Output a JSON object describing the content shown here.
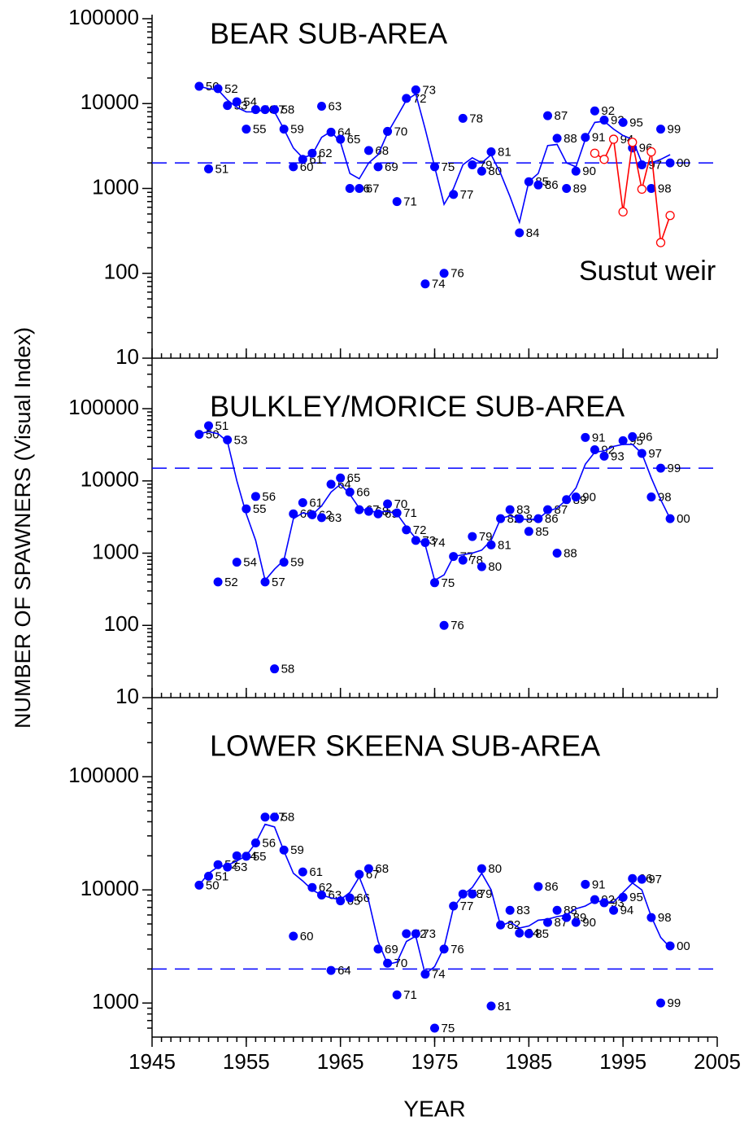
{
  "chart_data": [
    {
      "type": "scatter",
      "title": "BEAR SUB-AREA",
      "log_y": true,
      "xlim": [
        1945,
        2005
      ],
      "xticks": [
        1945,
        1955,
        1965,
        1975,
        1985,
        1995,
        2005
      ],
      "ylim": [
        10,
        100000
      ],
      "yticks": [
        10,
        100,
        1000,
        10000,
        100000
      ],
      "hline": 2000,
      "series": [
        {
          "kind": "points",
          "color": "#0000ff",
          "x": [
            1950,
            1951,
            1952,
            1953,
            1954,
            1955,
            1956,
            1957,
            1958,
            1959,
            1960,
            1961,
            1962,
            1963,
            1964,
            1965,
            1966,
            1967,
            1968,
            1969,
            1970,
            1971,
            1972,
            1973,
            1974,
            1975,
            1976,
            1977,
            1978,
            1979,
            1980,
            1981,
            1984,
            1985,
            1986,
            1987,
            1988,
            1989,
            1990,
            1991,
            1992,
            1993,
            1994,
            1995,
            1996,
            1997,
            1998,
            1999,
            2000
          ],
          "values": [
            16000,
            1700,
            15000,
            9500,
            10500,
            5000,
            8500,
            8500,
            8500,
            5000,
            1800,
            2200,
            2600,
            9300,
            4600,
            3800,
            1000,
            1000,
            2800,
            1800,
            4700,
            700,
            11500,
            14500,
            75,
            1800,
            100,
            850,
            6700,
            1900,
            1600,
            2700,
            300,
            1200,
            1100,
            7200,
            3900,
            1000,
            1600,
            4000,
            8200,
            6400,
            3800,
            6000,
            3000,
            1900,
            1000,
            5000,
            2000
          ],
          "point_labels": [
            "50",
            "51",
            "52",
            "53",
            "54",
            "55",
            "56",
            "57",
            "58",
            "59",
            "60",
            "61",
            "62",
            "63",
            "64",
            "65",
            "66",
            "67",
            "68",
            "69",
            "70",
            "71",
            "72",
            "73",
            "74",
            "75",
            "76",
            "77",
            "78",
            "79",
            "80",
            "81",
            "84",
            "85",
            "86",
            "87",
            "88",
            "89",
            "90",
            "91",
            "92",
            "93",
            "94",
            "95",
            "96",
            "97",
            "98",
            "99",
            "00"
          ]
        },
        {
          "kind": "line",
          "color": "#0000ff",
          "x": [
            1950,
            1951,
            1952,
            1953,
            1954,
            1955,
            1956,
            1957,
            1958,
            1959,
            1960,
            1961,
            1962,
            1963,
            1964,
            1965,
            1966,
            1967,
            1968,
            1969,
            1970,
            1971,
            1972,
            1973,
            1974,
            1975,
            1976,
            1977,
            1978,
            1979,
            1980,
            1981,
            1982,
            1983,
            1984,
            1985,
            1986,
            1987,
            1988,
            1989,
            1990,
            1991,
            1992,
            1993,
            1994,
            1995,
            1996,
            1997,
            1998,
            1999,
            2000
          ],
          "values": [
            16000,
            15000,
            14500,
            11000,
            9000,
            8000,
            8000,
            8500,
            8000,
            5000,
            3000,
            2300,
            2500,
            4000,
            4700,
            3500,
            1500,
            1300,
            2000,
            2500,
            4500,
            7000,
            11000,
            13000,
            5000,
            1800,
            650,
            1000,
            1900,
            2300,
            2000,
            2500,
            1500,
            800,
            400,
            1200,
            1500,
            3200,
            3300,
            2000,
            1800,
            3800,
            6000,
            6200,
            5000,
            4200,
            3800,
            2000,
            2000,
            2200,
            2500
          ]
        },
        {
          "name": "Sustut weir",
          "kind": "open-line",
          "color": "#ff0000",
          "x": [
            1992,
            1993,
            1994,
            1995,
            1996,
            1997,
            1998,
            1999,
            2000
          ],
          "values": [
            2600,
            2200,
            3800,
            530,
            3500,
            980,
            2700,
            230,
            480
          ]
        }
      ]
    },
    {
      "type": "scatter",
      "title": "BULKLEY/MORICE SUB-AREA",
      "log_y": true,
      "ylabel": "NUMBER OF SPAWNERS (Visual Index)",
      "xlim": [
        1945,
        2005
      ],
      "xticks": [
        1945,
        1955,
        1965,
        1975,
        1985,
        1995,
        2005
      ],
      "ylim": [
        10,
        500000
      ],
      "yticks": [
        10,
        100,
        1000,
        10000,
        100000
      ],
      "hline": 15000,
      "series": [
        {
          "kind": "points",
          "color": "#0000ff",
          "x": [
            1950,
            1951,
            1952,
            1953,
            1954,
            1955,
            1956,
            1957,
            1958,
            1959,
            1960,
            1961,
            1962,
            1963,
            1964,
            1965,
            1966,
            1967,
            1968,
            1969,
            1970,
            1971,
            1972,
            1973,
            1974,
            1975,
            1976,
            1977,
            1978,
            1979,
            1980,
            1981,
            1982,
            1983,
            1984,
            1985,
            1986,
            1987,
            1988,
            1989,
            1990,
            1991,
            1992,
            1993,
            1995,
            1996,
            1997,
            1998,
            1999,
            2000
          ],
          "values": [
            44000,
            58000,
            400,
            37000,
            750,
            4100,
            6100,
            400,
            25,
            750,
            3500,
            5000,
            3400,
            3100,
            9000,
            11000,
            7000,
            4000,
            3800,
            3500,
            4800,
            3600,
            2100,
            1500,
            1400,
            390,
            100,
            900,
            800,
            1700,
            650,
            1300,
            3000,
            4000,
            3000,
            2000,
            3000,
            4000,
            1000,
            5500,
            6000,
            40000,
            27000,
            22000,
            36000,
            41000,
            24000,
            6000,
            15000,
            3000
          ],
          "point_labels": [
            "50",
            "51",
            "52",
            "53",
            "54",
            "55",
            "56",
            "57",
            "58",
            "59",
            "60",
            "61",
            "62",
            "63",
            "64",
            "65",
            "66",
            "67",
            "68",
            "69",
            "70",
            "71",
            "72",
            "73",
            "74",
            "75",
            "76",
            "77",
            "78",
            "79",
            "80",
            "81",
            "82",
            "83",
            "84",
            "85",
            "86",
            "87",
            "88",
            "89",
            "90",
            "91",
            "92",
            "93",
            "95",
            "96",
            "97",
            "98",
            "99",
            "00"
          ]
        },
        {
          "kind": "line",
          "color": "#0000ff",
          "x": [
            1950,
            1951,
            1952,
            1953,
            1954,
            1955,
            1956,
            1957,
            1958,
            1959,
            1960,
            1961,
            1962,
            1963,
            1964,
            1965,
            1966,
            1967,
            1968,
            1969,
            1970,
            1971,
            1972,
            1973,
            1974,
            1975,
            1976,
            1977,
            1978,
            1979,
            1980,
            1981,
            1982,
            1983,
            1984,
            1985,
            1986,
            1987,
            1988,
            1989,
            1990,
            1991,
            1992,
            1993,
            1994,
            1995,
            1996,
            1997,
            1998,
            1999,
            2000
          ],
          "values": [
            45000,
            48000,
            45000,
            35000,
            10000,
            3500,
            1500,
            420,
            600,
            800,
            3000,
            3600,
            3400,
            4500,
            7000,
            9000,
            6500,
            4200,
            3800,
            3700,
            3800,
            3500,
            2300,
            1600,
            1300,
            420,
            500,
            900,
            950,
            1000,
            1100,
            1500,
            3000,
            3300,
            3000,
            2900,
            3000,
            3800,
            4200,
            5500,
            8000,
            17000,
            25000,
            26000,
            30000,
            32000,
            32000,
            24000,
            11000,
            5500,
            3000
          ]
        }
      ]
    },
    {
      "type": "scatter",
      "title": "LOWER SKEENA SUB-AREA",
      "log_y": true,
      "xlabel": "YEAR",
      "xlim": [
        1945,
        2005
      ],
      "xticks": [
        1945,
        1955,
        1965,
        1975,
        1985,
        1995,
        2005
      ],
      "ylim": [
        500,
        500000
      ],
      "yticks": [
        1000,
        10000,
        100000
      ],
      "hline": 2000,
      "series": [
        {
          "kind": "points",
          "color": "#0000ff",
          "x": [
            1950,
            1951,
            1952,
            1953,
            1954,
            1955,
            1956,
            1957,
            1958,
            1959,
            1960,
            1961,
            1962,
            1963,
            1964,
            1965,
            1966,
            1967,
            1968,
            1969,
            1970,
            1971,
            1972,
            1973,
            1974,
            1975,
            1976,
            1977,
            1978,
            1979,
            1980,
            1981,
            1982,
            1983,
            1984,
            1985,
            1986,
            1987,
            1988,
            1989,
            1990,
            1991,
            1992,
            1993,
            1994,
            1995,
            1996,
            1997,
            1998,
            1999,
            2000
          ],
          "values": [
            11000,
            13200,
            16700,
            15900,
            20000,
            19800,
            26000,
            44000,
            44000,
            22500,
            3900,
            14400,
            10500,
            9000,
            1940,
            8000,
            8500,
            13700,
            15400,
            3000,
            2250,
            1180,
            4100,
            4100,
            1800,
            600,
            3000,
            7200,
            9200,
            9200,
            15400,
            940,
            4900,
            6600,
            4150,
            4100,
            10700,
            5160,
            6600,
            5700,
            5160,
            11200,
            8200,
            7700,
            6600,
            8600,
            12600,
            12400,
            5700,
            1000,
            3200
          ],
          "point_labels": [
            "50",
            "51",
            "52",
            "53",
            "54",
            "55",
            "56",
            "57",
            "58",
            "59",
            "60",
            "61",
            "62",
            "63",
            "64",
            "65",
            "66",
            "67",
            "68",
            "69",
            "70",
            "71",
            "72",
            "73",
            "74",
            "75",
            "76",
            "77",
            "78",
            "79",
            "80",
            "81",
            "82",
            "83",
            "84",
            "85",
            "86",
            "87",
            "88",
            "89",
            "90",
            "91",
            "92",
            "93",
            "94",
            "95",
            "96",
            "97",
            "98",
            "99",
            "00"
          ]
        },
        {
          "kind": "line",
          "color": "#0000ff",
          "x": [
            1950,
            1951,
            1952,
            1953,
            1954,
            1955,
            1956,
            1957,
            1958,
            1959,
            1960,
            1961,
            1962,
            1963,
            1964,
            1965,
            1966,
            1967,
            1968,
            1969,
            1970,
            1971,
            1972,
            1973,
            1974,
            1975,
            1976,
            1977,
            1978,
            1979,
            1980,
            1981,
            1982,
            1983,
            1984,
            1985,
            1986,
            1987,
            1988,
            1989,
            1990,
            1991,
            1992,
            1993,
            1994,
            1995,
            1996,
            1997,
            1998,
            1999,
            2000
          ],
          "values": [
            11000,
            14000,
            16000,
            16500,
            18000,
            20000,
            26000,
            38000,
            36000,
            22000,
            14000,
            12000,
            10000,
            9000,
            8500,
            8200,
            9500,
            13000,
            8000,
            3500,
            2200,
            2300,
            3500,
            3900,
            1800,
            2100,
            3100,
            7000,
            9000,
            10500,
            14000,
            10000,
            4800,
            5200,
            4600,
            4800,
            5400,
            5500,
            5800,
            6000,
            6800,
            7200,
            8000,
            7800,
            7800,
            9500,
            11500,
            10000,
            5800,
            3800,
            3100
          ]
        }
      ]
    }
  ]
}
